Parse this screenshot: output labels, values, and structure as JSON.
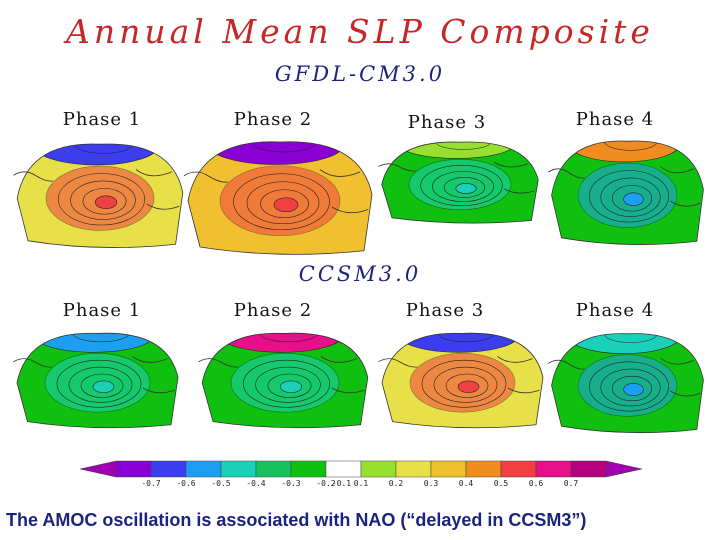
{
  "title": "Annual Mean SLP Composite",
  "models": [
    {
      "name": "GFDL-CM3.0",
      "phases": [
        "Phase 1",
        "Phase 2",
        "Phase 3",
        "Phase 4"
      ]
    },
    {
      "name": "CCSM3.0",
      "phases": [
        "Phase 1",
        "Phase 2",
        "Phase 3",
        "Phase 4"
      ]
    }
  ],
  "colorbar": {
    "ticks": [
      "-0.7",
      "-0.6",
      "-0.5",
      "-0.4",
      "-0.3",
      "-0.2",
      "-0.1",
      "0.1",
      "0.2",
      "0.3",
      "0.4",
      "0.5",
      "0.6",
      "0.7"
    ],
    "colors": [
      "#8a00d4",
      "#3d3df0",
      "#1c9ff0",
      "#1ad0b8",
      "#18c060",
      "#10c010",
      "#ffffff",
      "#98e030",
      "#e8e048",
      "#f0c030",
      "#f08c20",
      "#f04040",
      "#e8108a",
      "#b40080"
    ],
    "left_arrow_color": "#a000b0",
    "right_arrow_color": "#a000b0"
  },
  "caption": "The AMOC oscillation is associated with NAO (“delayed in CCSM3”)",
  "palette": {
    "land_outline": "#333333",
    "contour": "#222222"
  },
  "maps": [
    {
      "model": "GFDL-CM3.0",
      "phase": "Phase 1",
      "pattern": "dipole",
      "north": "#3d3df0",
      "center": "#f04040",
      "base": "#e8e048"
    },
    {
      "model": "GFDL-CM3.0",
      "phase": "Phase 2",
      "pattern": "dipole-strong",
      "north": "#8a00d4",
      "center": "#f04040",
      "base": "#f0c030"
    },
    {
      "model": "GFDL-CM3.0",
      "phase": "Phase 3",
      "pattern": "weak",
      "north": "#98e030",
      "center": "#1ad0b8",
      "base": "#10c010"
    },
    {
      "model": "GFDL-CM3.0",
      "phase": "Phase 4",
      "pattern": "reverse",
      "north": "#f08c20",
      "center": "#1c9ff0",
      "base": "#10c010"
    },
    {
      "model": "CCSM3.0",
      "phase": "Phase 1",
      "pattern": "weak-neg",
      "north": "#1c9ff0",
      "center": "#1ad0b8",
      "base": "#10c010"
    },
    {
      "model": "CCSM3.0",
      "phase": "Phase 2",
      "pattern": "dipole-rev",
      "north": "#e8108a",
      "center": "#1ad0b8",
      "base": "#10c010"
    },
    {
      "model": "CCSM3.0",
      "phase": "Phase 3",
      "pattern": "dipole",
      "north": "#3d3df0",
      "center": "#f04040",
      "base": "#e8e048"
    },
    {
      "model": "CCSM3.0",
      "phase": "Phase 4",
      "pattern": "weak-neg",
      "north": "#1ad0b8",
      "center": "#1c9ff0",
      "base": "#10c010"
    }
  ]
}
